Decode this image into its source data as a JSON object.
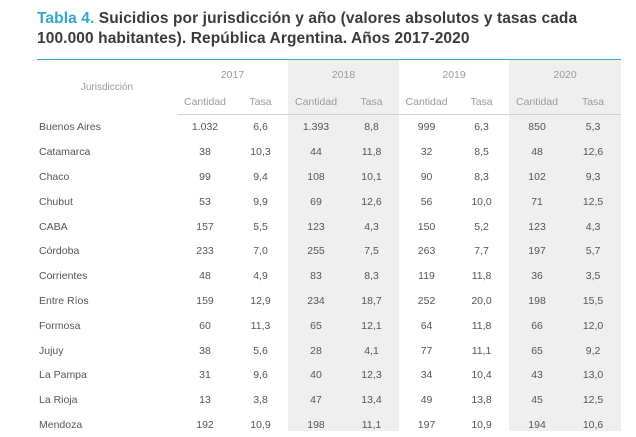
{
  "title": {
    "label": "Tabla 4.",
    "text": " Suicidios por jurisdicción y año (valores absolutos y tasas cada 100.000 habitantes). República Argentina. Años 2017-2020"
  },
  "table": {
    "first_header": "Jurisdicción",
    "years": [
      "2017",
      "2018",
      "2019",
      "2020"
    ],
    "sub_headers": [
      "Cantidad",
      "Tasa"
    ],
    "rows": [
      {
        "name": "Buenos Aires",
        "values": [
          "1.032",
          "6,6",
          "1.393",
          "8,8",
          "999",
          "6,3",
          "850",
          "5,3"
        ]
      },
      {
        "name": "Catamarca",
        "values": [
          "38",
          "10,3",
          "44",
          "11,8",
          "32",
          "8,5",
          "48",
          "12,6"
        ]
      },
      {
        "name": "Chaco",
        "values": [
          "99",
          "9,4",
          "108",
          "10,1",
          "90",
          "8,3",
          "102",
          "9,3"
        ]
      },
      {
        "name": "Chubut",
        "values": [
          "53",
          "9,9",
          "69",
          "12,6",
          "56",
          "10,0",
          "71",
          "12,5"
        ]
      },
      {
        "name": "CABA",
        "values": [
          "157",
          "5,5",
          "123",
          "4,3",
          "150",
          "5,2",
          "123",
          "4,3"
        ]
      },
      {
        "name": "Córdoba",
        "values": [
          "233",
          "7,0",
          "255",
          "7,5",
          "263",
          "7,7",
          "197",
          "5,7"
        ]
      },
      {
        "name": "Corrientes",
        "values": [
          "48",
          "4,9",
          "83",
          "8,3",
          "119",
          "11,8",
          "36",
          "3,5"
        ]
      },
      {
        "name": "Entre Ríos",
        "values": [
          "159",
          "12,9",
          "234",
          "18,7",
          "252",
          "20,0",
          "198",
          "15,5"
        ]
      },
      {
        "name": "Formosa",
        "values": [
          "60",
          "11,3",
          "65",
          "12,1",
          "64",
          "11,8",
          "66",
          "12,0"
        ]
      },
      {
        "name": "Jujuy",
        "values": [
          "38",
          "5,6",
          "28",
          "4,1",
          "77",
          "11,1",
          "65",
          "9,2"
        ]
      },
      {
        "name": "La Pampa",
        "values": [
          "31",
          "9,6",
          "40",
          "12,3",
          "34",
          "10,4",
          "43",
          "13,0"
        ]
      },
      {
        "name": "La Rioja",
        "values": [
          "13",
          "3,8",
          "47",
          "13,4",
          "49",
          "13,8",
          "45",
          "12,5"
        ]
      },
      {
        "name": "Mendoza",
        "values": [
          "192",
          "10,9",
          "198",
          "11,1",
          "197",
          "10,9",
          "194",
          "10,6"
        ]
      }
    ]
  },
  "colors": {
    "accent": "#2fa8cc",
    "title_text": "#3a3a3a",
    "body_text": "#555555",
    "header_text": "#9a9a9a",
    "shaded_column": "#efefef"
  }
}
